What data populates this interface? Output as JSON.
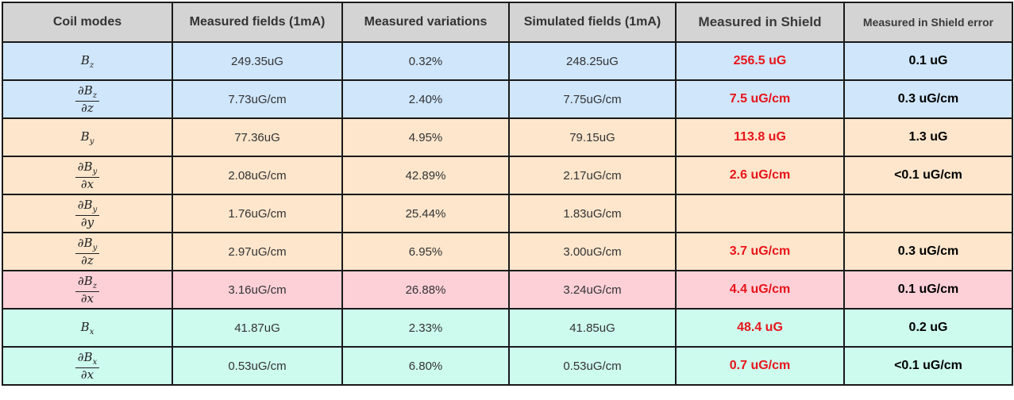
{
  "colors": {
    "header_bg": "#d4d4d4",
    "blue": "#cfe6fb",
    "orange": "#fde6cc",
    "pink": "#fdd0d8",
    "teal": "#cdfbee",
    "shield_text": "#e8141a"
  },
  "headers": [
    "Coil modes",
    "Measured fields (1mA)",
    "Measured variations",
    "Simulated fields (1mA)",
    "Measured in Shield",
    "Measured in Shield error"
  ],
  "rows": [
    {
      "mode_num": "",
      "mode_base": "B",
      "mode_sub": "z",
      "mode_den": "",
      "measured": "249.35uG",
      "variation": "0.32%",
      "simulated": "248.25uG",
      "shield": "256.5 uG",
      "shield_err": "0.1 uG",
      "color": "blue"
    },
    {
      "mode_num": "∂",
      "mode_base": "B",
      "mode_sub": "z",
      "mode_den": "∂z",
      "measured": "7.73uG/cm",
      "variation": "2.40%",
      "simulated": "7.75uG/cm",
      "shield": "7.5 uG/cm",
      "shield_err": "0.3 uG/cm",
      "color": "blue"
    },
    {
      "mode_num": "",
      "mode_base": "B",
      "mode_sub": "y",
      "mode_den": "",
      "measured": "77.36uG",
      "variation": "4.95%",
      "simulated": "79.15uG",
      "shield": "113.8 uG",
      "shield_err": "1.3 uG",
      "color": "orange"
    },
    {
      "mode_num": "∂",
      "mode_base": "B",
      "mode_sub": "y",
      "mode_den": "∂x",
      "measured": "2.08uG/cm",
      "variation": "42.89%",
      "simulated": "2.17uG/cm",
      "shield": "2.6 uG/cm",
      "shield_err": "<0.1 uG/cm",
      "color": "orange"
    },
    {
      "mode_num": "∂",
      "mode_base": "B",
      "mode_sub": "y",
      "mode_den": "∂y",
      "measured": "1.76uG/cm",
      "variation": "25.44%",
      "simulated": "1.83uG/cm",
      "shield": "",
      "shield_err": "",
      "color": "orange"
    },
    {
      "mode_num": "∂",
      "mode_base": "B",
      "mode_sub": "y",
      "mode_den": "∂z",
      "measured": "2.97uG/cm",
      "variation": "6.95%",
      "simulated": "3.00uG/cm",
      "shield": "3.7 uG/cm",
      "shield_err": "0.3 uG/cm",
      "color": "orange"
    },
    {
      "mode_num": "∂",
      "mode_base": "B",
      "mode_sub": "z",
      "mode_den": "∂x",
      "measured": "3.16uG/cm",
      "variation": "26.88%",
      "simulated": "3.24uG/cm",
      "shield": "4.4 uG/cm",
      "shield_err": "0.1 uG/cm",
      "color": "pink"
    },
    {
      "mode_num": "",
      "mode_base": "B",
      "mode_sub": "x",
      "mode_den": "",
      "measured": "41.87uG",
      "variation": "2.33%",
      "simulated": "41.85uG",
      "shield": "48.4 uG",
      "shield_err": "0.2 uG",
      "color": "teal"
    },
    {
      "mode_num": "∂",
      "mode_base": "B",
      "mode_sub": "x",
      "mode_den": "∂x",
      "measured": "0.53uG/cm",
      "variation": "6.80%",
      "simulated": "0.53uG/cm",
      "shield": "0.7 uG/cm",
      "shield_err": "<0.1 uG/cm",
      "color": "teal"
    }
  ]
}
